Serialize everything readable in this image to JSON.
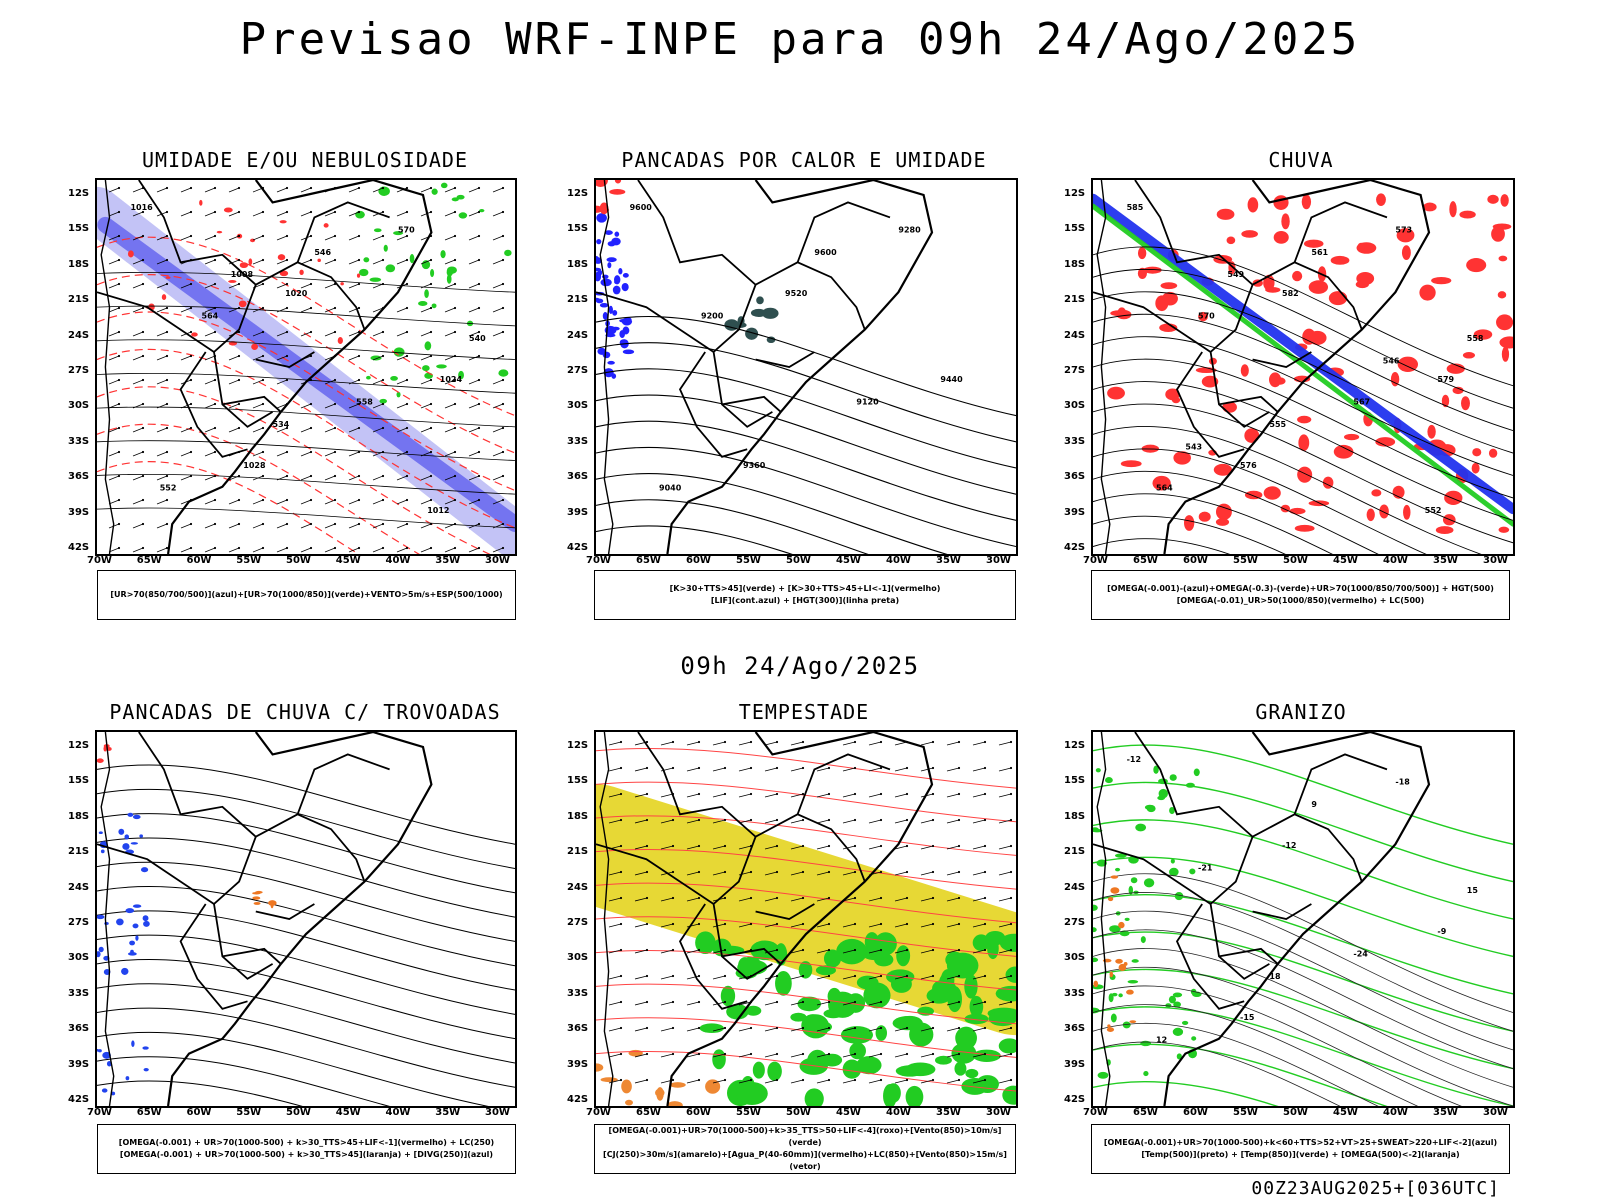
{
  "page": {
    "title": "Previsao WRF-INPE  para 09h 24/Ago/2025",
    "subtitle": "09h 24/Ago/2025",
    "footer": "00Z23AUG2025+[036UTC]"
  },
  "axes": {
    "lat_labels": [
      "12S",
      "15S",
      "18S",
      "21S",
      "24S",
      "27S",
      "30S",
      "33S",
      "36S",
      "39S",
      "42S"
    ],
    "lon_labels": [
      "70W",
      "65W",
      "60W",
      "55W",
      "50W",
      "45W",
      "40W",
      "35W",
      "30W"
    ]
  },
  "panels": [
    {
      "id": "umidade",
      "title": "UMIDADE E/OU NEBULOSIDADE",
      "legend": [
        "[UR>70(850/700/500)](azul)+[UR>70(1000/850)](verde)+VENTO>5m/s+ESP(500/1000)"
      ],
      "colors": {
        "primary": "#6b6bef",
        "secondary": "#b9b9f5",
        "tertiary": "#22cc22",
        "quaternary": "#ff3333"
      },
      "contour_labels": [
        "1016",
        "1020",
        "1024",
        "1028",
        "570",
        "564",
        "558",
        "552",
        "546",
        "540",
        "534",
        "1012",
        "1008"
      ]
    },
    {
      "id": "pancadas-calor",
      "title": "PANCADAS POR CALOR E UMIDADE",
      "legend": [
        "[K>30+TTS>45](verde) + [K>30+TTS>45+LI<-1](vermelho)",
        "[LIF](cont.azul) + [HGT(300)](linha preta)"
      ],
      "colors": {
        "primary": "#2f4f4f",
        "secondary": "#ff3333",
        "tertiary": "#2222ff"
      },
      "contour_labels": [
        "9600",
        "9520",
        "9440",
        "9360",
        "9280",
        "9200",
        "9120",
        "9040",
        "9600"
      ]
    },
    {
      "id": "chuva",
      "title": "CHUVA",
      "legend": [
        "[OMEGA(-0.001)-(azul)+OMEGA(-0.3)-(verde)+UR>70(1000/850/700/500)] + HGT(500)",
        "[OMEGA(-0.01)_UR>50(1000/850)(vermelho) + LC(500)"
      ],
      "colors": {
        "primary": "#ff3333",
        "secondary": "#2233ee",
        "tertiary": "#22cc22"
      },
      "contour_labels": [
        "585",
        "582",
        "579",
        "576",
        "573",
        "570",
        "567",
        "564",
        "561",
        "558",
        "555",
        "552",
        "549",
        "546",
        "543"
      ]
    },
    {
      "id": "trovoadas",
      "title": "PANCADAS DE CHUVA C/ TROVOADAS",
      "legend": [
        "[OMEGA(-0.001) + UR>70(1000-500) + k>30_TTS>45+LIF<-1](vermelho) + LC(250)",
        "[OMEGA(-0.001) + UR>70(1000-500) + k>30_TTS>45](laranja) + [DIVG(250)](azul)"
      ],
      "colors": {
        "primary": "#2244ee",
        "secondary": "#ee7722",
        "tertiary": "#ff3333"
      },
      "contour_labels": []
    },
    {
      "id": "tempestade",
      "title": "TEMPESTADE",
      "legend": [
        "[OMEGA(-0.001)+UR>70(1000-500)+k>35_TTS>50+LIF<-4](roxo)+[Vento(850)>10m/s](verde)",
        "[CJ(250)>30m/s](amarelo)+[Agua_P(40-60mm)](vermelho)+LC(850)+[Vento(850)>15m/s](vetor)"
      ],
      "colors": {
        "primary": "#e6d62a",
        "secondary": "#22cc22",
        "tertiary": "#ff4444",
        "quaternary": "#ee8833"
      },
      "contour_labels": []
    },
    {
      "id": "granizo",
      "title": "GRANIZO",
      "legend": [
        "[OMEGA(-0.001)+UR>70(1000-500)+k<60+TTS>52+VT>25+SWEAT>220+LIF<-2](azul)",
        "[Temp(500)](preto) + [Temp(850)](verde) + [OMEGA(500)<-2](laranja)"
      ],
      "colors": {
        "primary": "#22cc22",
        "secondary": "#222222",
        "tertiary": "#ee7722"
      },
      "contour_labels": [
        "-12",
        "-12",
        "-9",
        "-15",
        "-18",
        "-21",
        "-24",
        "12",
        "9",
        "15",
        "18"
      ]
    }
  ]
}
